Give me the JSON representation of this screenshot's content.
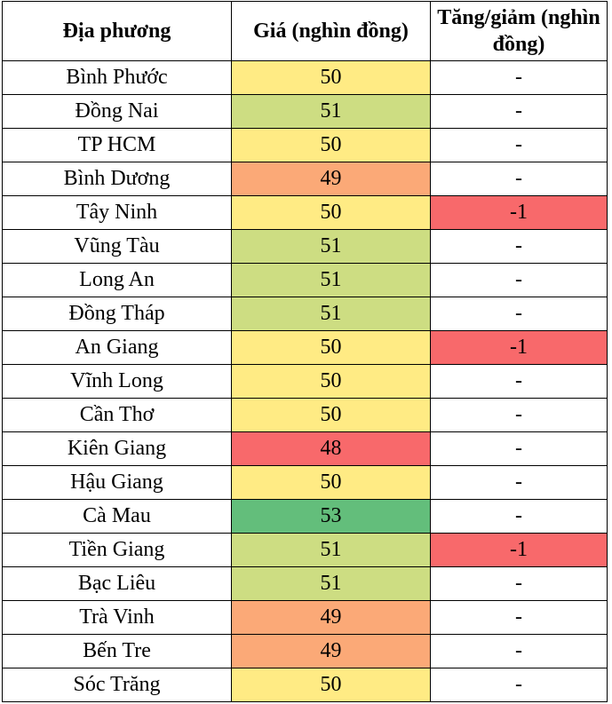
{
  "table": {
    "headers": [
      "Địa phương",
      "Giá (nghìn đồng)",
      "Tăng/giảm (nghìn đồng)"
    ],
    "rows": [
      [
        "Bình Phước",
        50,
        "-"
      ],
      [
        "Đồng Nai",
        51,
        "-"
      ],
      [
        "TP HCM",
        50,
        "-"
      ],
      [
        "Bình Dương",
        49,
        "-"
      ],
      [
        "Tây Ninh",
        50,
        -1
      ],
      [
        "Vũng Tàu",
        51,
        "-"
      ],
      [
        "Long An",
        51,
        "-"
      ],
      [
        "Đồng Tháp",
        51,
        "-"
      ],
      [
        "An Giang",
        50,
        -1
      ],
      [
        "Vĩnh Long",
        50,
        "-"
      ],
      [
        "Cần Thơ",
        50,
        "-"
      ],
      [
        "Kiên Giang",
        48,
        "-"
      ],
      [
        "Hậu Giang",
        50,
        "-"
      ],
      [
        "Cà Mau",
        53,
        "-"
      ],
      [
        "Tiền Giang",
        51,
        -1
      ],
      [
        "Bạc Liêu",
        51,
        "-"
      ],
      [
        "Trà Vinh",
        49,
        "-"
      ],
      [
        "Bến Tre",
        49,
        "-"
      ],
      [
        "Sóc Trăng",
        50,
        "-"
      ]
    ],
    "price_colors": [
      "#ffeb84",
      "#cddd82",
      "#ffeb84",
      "#fba977",
      "#ffeb84",
      "#cddd82",
      "#cddd82",
      "#cddd82",
      "#ffeb84",
      "#ffeb84",
      "#ffeb84",
      "#f8696b",
      "#ffeb84",
      "#63be7b",
      "#cddd82",
      "#cddd82",
      "#fba977",
      "#fba977",
      "#ffeb84"
    ],
    "change_colors": [
      null,
      null,
      null,
      null,
      "#f8696b",
      null,
      null,
      null,
      "#f8696b",
      null,
      null,
      null,
      null,
      null,
      "#f8696b",
      null,
      null,
      null,
      null
    ]
  }
}
